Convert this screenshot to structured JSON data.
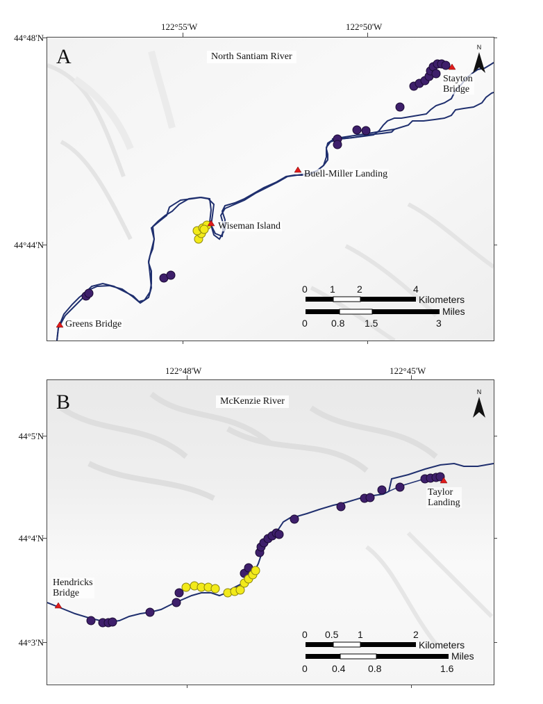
{
  "panel_a": {
    "letter": "A",
    "river": "North Santiam River",
    "lon_labels": [
      "122°55'W",
      "122°50'W"
    ],
    "lat_labels": [
      "44°48'N",
      "44°44'N"
    ],
    "places": {
      "stayton_line1": "Stayton",
      "stayton_line2": "Bridge",
      "buell_miller": "Buell-Miller Landing",
      "wiseman": "Wiseman Island",
      "greens": "Greens Bridge"
    },
    "north_label": "N",
    "scale": {
      "km_ticks": [
        "0",
        "1",
        "2",
        "4"
      ],
      "km_unit": "Kilometers",
      "mi_ticks": [
        "0",
        "0.8",
        "1.5",
        "3"
      ],
      "mi_unit": "Miles"
    }
  },
  "panel_b": {
    "letter": "B",
    "river": "McKenzie River",
    "lon_labels": [
      "122°48'W",
      "122°45'W"
    ],
    "lat_labels": [
      "44°5'N",
      "44°4'N",
      "44°3'N"
    ],
    "places": {
      "hendricks_line1": "Hendricks",
      "hendricks_line2": "Bridge",
      "taylor_line1": "Taylor",
      "taylor_line2": "Landing"
    },
    "north_label": "N",
    "scale": {
      "km_ticks": [
        "0",
        "0.5",
        "1",
        "2"
      ],
      "km_unit": "Kilometers",
      "mi_ticks": [
        "0",
        "0.4",
        "0.8",
        "1.6"
      ],
      "mi_unit": "Miles"
    }
  },
  "colors": {
    "river": "#1f2f6e",
    "site_purple": "#3e1f6b",
    "site_yellow": "#f2ea1a",
    "landmark_red": "#e01b1b"
  }
}
